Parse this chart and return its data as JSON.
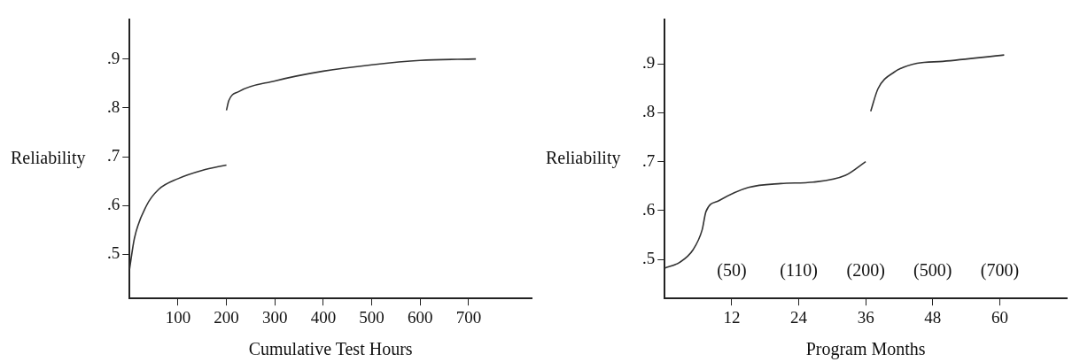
{
  "chart_data": [
    {
      "type": "line",
      "xlabel": "Cumulative Test Hours",
      "ylabel": "Reliability",
      "xlim": [
        0,
        830
      ],
      "xticks": [
        100,
        200,
        300,
        400,
        500,
        600,
        700
      ],
      "ylim": [
        0.41,
        0.98
      ],
      "yticks": [
        {
          "value": 0.5,
          "label": ".5"
        },
        {
          "value": 0.6,
          "label": ".6"
        },
        {
          "value": 0.7,
          "label": ".7"
        },
        {
          "value": 0.8,
          "label": ".8"
        },
        {
          "value": 0.9,
          "label": ".9"
        }
      ],
      "grid": false,
      "legend": false,
      "marker": "none",
      "line_style": "solid",
      "series": [
        {
          "color": "#333333",
          "x": [
            0,
            10,
            35,
            60,
            100,
            150,
            200
          ],
          "values": [
            0.47,
            0.533,
            0.6,
            0.633,
            0.655,
            0.672,
            0.683
          ]
        },
        {
          "color": "#333333",
          "x": [
            200,
            205,
            225,
            300,
            400,
            500,
            600,
            715
          ],
          "values": [
            0.795,
            0.815,
            0.833,
            0.855,
            0.875,
            0.888,
            0.897,
            0.9
          ]
        }
      ]
    },
    {
      "type": "line",
      "xlabel": "Program Months",
      "ylabel": "Reliability",
      "xlim": [
        0,
        72
      ],
      "xticks": [
        12,
        24,
        36,
        48,
        60
      ],
      "ylim": [
        0.42,
        0.99
      ],
      "yticks": [
        {
          "value": 0.5,
          "label": ".5"
        },
        {
          "value": 0.6,
          "label": ".6"
        },
        {
          "value": 0.7,
          "label": ".7"
        },
        {
          "value": 0.8,
          "label": ".8"
        },
        {
          "value": 0.9,
          "label": ".9"
        }
      ],
      "grid": false,
      "legend": false,
      "marker": "none",
      "line_style": "solid",
      "annotations": [
        "(50)",
        "(110)",
        "(200)",
        "(500)",
        "(700)"
      ],
      "series": [
        {
          "color": "#333333",
          "x": [
            0,
            2.7,
            5.1,
            6.7,
            7.4,
            9.7,
            15,
            20.8,
            26.6,
            32.4,
            36
          ],
          "values": [
            0.482,
            0.494,
            0.52,
            0.56,
            0.598,
            0.62,
            0.647,
            0.655,
            0.658,
            0.672,
            0.7
          ]
        },
        {
          "color": "#333333",
          "x": [
            36.9,
            38.2,
            41.1,
            45.2,
            49.8,
            60.8
          ],
          "values": [
            0.803,
            0.849,
            0.883,
            0.901,
            0.905,
            0.918
          ]
        }
      ]
    }
  ]
}
